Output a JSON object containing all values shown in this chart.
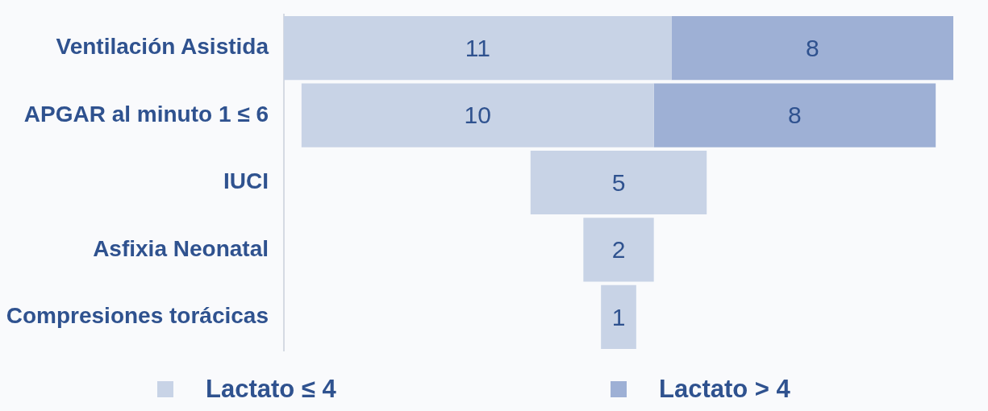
{
  "chart_data": {
    "type": "other",
    "categories": [
      "Ventilación Asistida",
      "APGAR al minuto 1 ≤ 6",
      "IUCI",
      "Asfixia Neonatal",
      "Compresiones torácicas"
    ],
    "series": [
      {
        "name": "Lactato ≤ 4",
        "color": "#c8d3e6",
        "values": [
          11,
          10,
          5,
          2,
          1
        ]
      },
      {
        "name": "Lactato > 4",
        "color": "#9eb0d5",
        "values": [
          8,
          8,
          null,
          null,
          null
        ]
      }
    ],
    "data_labels": true,
    "legend": "bottom"
  }
}
